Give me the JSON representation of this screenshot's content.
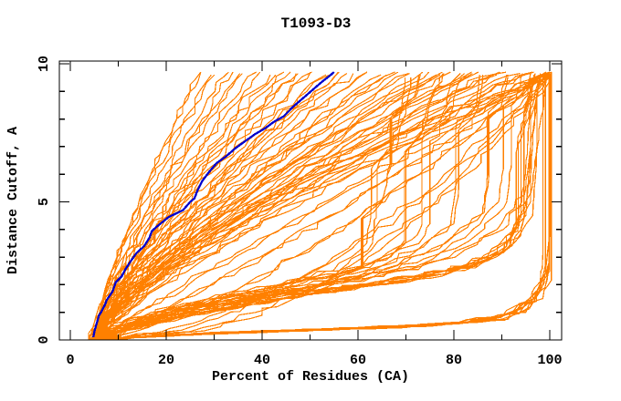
{
  "page": {
    "background": "#ffffff"
  },
  "chart_data": {
    "type": "line",
    "title": "T1093-D3",
    "xlabel": "Percent of Residues (CA)",
    "ylabel": "Distance Cutoff, A",
    "xlim": [
      0,
      100
    ],
    "ylim": [
      0,
      10
    ],
    "x_major_ticks": [
      0,
      20,
      40,
      60,
      80,
      100
    ],
    "x_minor_ticks": [
      10,
      30,
      50,
      70,
      90
    ],
    "y_major_ticks": [
      0,
      5,
      10
    ],
    "y_minor_ticks": [
      1,
      2,
      3,
      4,
      6,
      7,
      8,
      9
    ],
    "grid": false,
    "legend": null,
    "colors": {
      "model_lines": "#ff8000",
      "highlight_line": "#0000cd",
      "frame": "#000000",
      "text": "#000000"
    },
    "highlight_series": {
      "name": "highlighted-model",
      "points": [
        4.8,
        0.1,
        5.5,
        0.6,
        6.4,
        1.0,
        7.6,
        1.45,
        8.8,
        1.75,
        10.7,
        2.3,
        12.6,
        2.85,
        15.4,
        3.4,
        16.5,
        3.7,
        18,
        4.1,
        20.5,
        4.45,
        23.5,
        4.7,
        25,
        5.0,
        26.5,
        5.4,
        27.5,
        5.75,
        29,
        6.1,
        30.5,
        6.4,
        32.5,
        6.65,
        34.5,
        6.95,
        36.5,
        7.2,
        38.5,
        7.45,
        40.5,
        7.65,
        42.5,
        7.9,
        44.5,
        8.1,
        46.5,
        8.45,
        48.5,
        8.75,
        50.5,
        9.05,
        52.5,
        9.35,
        54,
        9.55,
        55,
        9.7
      ]
    },
    "series": [
      [
        4.6,
        0,
        5.5,
        0.5,
        6.2,
        1,
        7.8,
        2,
        9.8,
        3,
        12,
        4,
        14.3,
        5,
        16.8,
        6,
        19.4,
        7,
        22.2,
        8,
        25,
        9,
        27.2,
        9.7
      ],
      [
        5.2,
        0,
        5.5,
        0.5,
        6.3,
        1,
        8.2,
        2,
        10.4,
        3,
        12.9,
        4,
        15.5,
        5,
        18.4,
        6,
        21.3,
        7,
        24.4,
        8,
        27.6,
        9,
        30.1,
        9.6
      ],
      [
        4.8,
        0,
        5.6,
        0.5,
        6.5,
        1,
        8.6,
        2,
        11.0,
        3,
        13.8,
        4,
        16.7,
        5,
        19.9,
        6,
        23.2,
        7,
        26.6,
        8,
        30.2,
        9,
        33.0,
        9.7
      ],
      [
        5.5,
        0,
        5.7,
        0.5,
        6.6,
        1,
        8.9,
        2,
        11.7,
        3,
        14.7,
        4,
        18.0,
        5,
        21.4,
        6,
        25.1,
        7,
        28.9,
        8,
        32.8,
        9,
        35.9,
        9.65
      ],
      [
        5.0,
        0,
        5.7,
        0.5,
        6.8,
        1,
        9.3,
        2,
        12.3,
        3,
        15.6,
        4,
        19.2,
        5,
        23.0,
        6,
        27.0,
        7,
        31.1,
        8,
        35.5,
        9,
        38.8,
        9.7
      ],
      [
        5.8,
        0,
        5.9,
        0.5,
        6.9,
        1,
        9.7,
        2,
        12.9,
        3,
        16.5,
        4,
        20.4,
        5,
        24.5,
        6,
        28.8,
        7,
        33.4,
        8,
        38.1,
        9,
        41.7,
        9.6
      ],
      [
        4.7,
        0,
        5.8,
        0.5,
        7.1,
        1,
        10.0,
        2,
        13.5,
        3,
        17.4,
        4,
        21.6,
        5,
        26.1,
        6,
        30.7,
        7,
        35.6,
        8,
        40.7,
        9,
        44.6,
        9.7
      ],
      [
        5.3,
        0,
        5.9,
        0.5,
        7.2,
        1,
        10.4,
        2,
        14.2,
        3,
        18.3,
        4,
        22.8,
        5,
        27.6,
        6,
        32.6,
        7,
        37.8,
        8,
        43.3,
        9,
        47.5,
        9.65
      ],
      [
        6.0,
        0,
        6.0,
        0.5,
        7.4,
        1,
        10.8,
        2,
        14.8,
        3,
        19.2,
        4,
        24.0,
        5,
        29.1,
        6,
        34.5,
        7,
        40.1,
        8,
        45.9,
        9,
        50.4,
        9.7
      ],
      [
        4.9,
        0,
        6.0,
        0.5,
        7.5,
        1,
        11.2,
        2,
        15.4,
        3,
        20.2,
        4,
        25.3,
        5,
        30.7,
        6,
        36.4,
        7,
        42.3,
        8,
        48.5,
        9,
        53.3,
        9.6
      ],
      [
        5.6,
        0,
        6.1,
        0.5,
        7.7,
        1,
        11.5,
        2,
        16.1,
        3,
        21.1,
        4,
        26.5,
        5,
        32.2,
        6,
        38.3,
        7,
        44.6,
        8,
        51.1,
        9,
        56.1,
        9.7
      ],
      [
        5.1,
        0,
        6.1,
        0.5,
        7.8,
        1,
        11.9,
        2,
        16.7,
        3,
        22.0,
        4,
        27.7,
        5,
        33.8,
        6,
        40.1,
        7,
        46.8,
        8,
        53.7,
        9,
        59.0,
        9.65
      ],
      [
        4.6,
        0,
        6.2,
        0.5,
        8.0,
        1,
        12.3,
        2,
        17.3,
        3,
        22.9,
        4,
        28.9,
        5,
        35.3,
        6,
        42.0,
        7,
        49.0,
        8,
        56.3,
        9,
        61.9,
        9.7
      ],
      [
        5.9,
        0,
        6.3,
        0.5,
        8.1,
        1,
        12.6,
        2,
        17.9,
        3,
        23.8,
        4,
        30.1,
        5,
        36.8,
        6,
        43.9,
        7,
        51.3,
        8,
        58.9,
        9,
        64.8,
        9.6
      ],
      [
        5.2,
        0,
        6.3,
        0.5,
        8.3,
        1,
        13.0,
        2,
        18.6,
        3,
        24.7,
        4,
        31.3,
        5,
        38.4,
        6,
        45.8,
        7,
        53.5,
        8,
        61.6,
        9,
        67.7,
        9.7
      ],
      [
        4.8,
        0,
        6.4,
        0.5,
        8.4,
        1,
        13.4,
        2,
        19.2,
        3,
        25.6,
        4,
        32.5,
        5,
        39.9,
        6,
        47.7,
        7,
        55.8,
        8,
        64.2,
        9,
        70.6,
        9.65
      ],
      [
        5.4,
        0,
        6.4,
        0.5,
        8.6,
        1,
        13.7,
        2,
        19.8,
        3,
        26.5,
        4,
        33.8,
        5,
        41.5,
        6,
        49.6,
        7,
        58.0,
        8,
        66.8,
        9,
        73.5,
        9.7
      ],
      [
        6.1,
        0,
        6.5,
        0.5,
        8.7,
        1,
        14.1,
        2,
        20.4,
        3,
        27.4,
        4,
        35.0,
        5,
        43.0,
        6,
        51.4,
        7,
        60.2,
        8,
        69.4,
        9,
        76.4,
        9.6
      ],
      [
        5.0,
        0,
        6.6,
        0.5,
        8.9,
        1,
        14.5,
        2,
        21.1,
        3,
        28.3,
        4,
        36.2,
        5,
        44.5,
        6,
        53.3,
        7,
        62.5,
        8,
        72.0,
        9,
        79.3,
        9.7
      ],
      [
        4.7,
        0,
        6.6,
        0.5,
        9.0,
        1,
        14.8,
        2,
        21.7,
        3,
        29.2,
        4,
        37.4,
        5,
        46.1,
        6,
        55.2,
        7,
        64.7,
        8,
        74.6,
        9,
        82.2,
        9.65
      ],
      [
        5.7,
        0,
        6.7,
        0.5,
        9.2,
        1,
        15.2,
        2,
        22.3,
        3,
        30.1,
        4,
        38.6,
        5,
        47.6,
        6,
        57.1,
        7,
        67.0,
        8,
        77.2,
        9,
        85.1,
        9.7
      ],
      [
        5.3,
        0,
        6.7,
        0.5,
        9.3,
        1,
        15.6,
        2,
        22.9,
        3,
        31.1,
        4,
        39.8,
        5,
        49.2,
        6,
        59.0,
        7,
        69.2,
        8,
        79.8,
        9,
        88.0,
        9.6
      ],
      [
        4.9,
        0,
        6.8,
        0.5,
        9.5,
        1,
        15.9,
        2,
        23.6,
        3,
        32.0,
        4,
        41.0,
        5,
        50.7,
        6,
        60.8,
        7,
        71.4,
        8,
        82.4,
        9,
        90.9,
        9.7
      ],
      [
        6.2,
        0,
        6.9,
        0.5,
        9.6,
        1,
        16.3,
        2,
        24.2,
        3,
        32.9,
        4,
        42.3,
        5,
        52.2,
        6,
        62.7,
        7,
        73.7,
        8,
        85.0,
        9,
        93.8,
        9.65
      ],
      [
        5.5,
        0,
        6.9,
        0.5,
        9.8,
        1,
        16.7,
        2,
        24.8,
        3,
        33.8,
        4,
        43.5,
        5,
        53.8,
        6,
        64.6,
        7,
        75.9,
        8,
        87.7,
        9,
        96.7,
        9.7
      ],
      [
        5.1,
        0,
        7.0,
        0.5,
        9.9,
        1,
        17.1,
        2,
        25.5,
        3,
        34.7,
        4,
        44.7,
        5,
        55.3,
        6,
        66.5,
        7,
        78.1,
        8,
        90.3,
        9,
        99.6,
        9.65
      ],
      [
        5.0,
        0,
        24.9,
        0.3,
        34.1,
        0.7,
        42.1,
        1.2,
        51.6,
        2,
        61.1,
        3,
        72.3,
        4.5,
        81.6,
        6,
        89.6,
        7.5,
        95.4,
        8.7,
        100,
        9.7
      ],
      [
        5.5,
        0,
        19.1,
        0.3,
        27.3,
        0.7,
        35.1,
        1.2,
        44.9,
        2,
        54.8,
        3,
        67.3,
        4.5,
        78.0,
        6,
        87.5,
        7.5,
        94.5,
        8.7,
        100,
        9.65
      ],
      [
        4.8,
        0,
        13.4,
        0.3,
        20.1,
        0.7,
        27.0,
        1.2,
        36.4,
        2,
        46.8,
        3,
        60.5,
        4.5,
        72.9,
        6,
        84.3,
        7.5,
        93.1,
        8.7,
        100,
        9.7
      ],
      [
        5.2,
        0,
        9.9,
        0.3,
        15.2,
        0.7,
        21.2,
        1.2,
        29.8,
        2,
        40.1,
        3,
        54.5,
        4.5,
        68.2,
        6,
        81.3,
        7.5,
        91.6,
        8.7,
        100,
        9.6
      ],
      [
        5.0,
        0,
        7.9,
        0.3,
        11.8,
        0.7,
        16.8,
        1.2,
        24.6,
        2,
        34.4,
        3,
        49.1,
        4.5,
        63.8,
        6,
        78.4,
        7.5,
        90.2,
        8.7,
        100,
        9.7
      ],
      [
        5.6,
        0,
        6.5,
        0.3,
        9.1,
        0.7,
        12.7,
        1.2,
        19.3,
        2,
        28.2,
        3,
        42.8,
        4.5,
        58.4,
        6,
        74.7,
        7.5,
        88.4,
        8.7,
        100,
        9.65
      ],
      [
        4.9,
        0,
        5.5,
        0.3,
        6.8,
        0.7,
        9.2,
        1.2,
        13.9,
        2,
        21.3,
        3,
        35.0,
        4.5,
        51.3,
        6,
        69.6,
        7.5,
        85.7,
        8.7,
        100,
        9.7
      ],
      [
        5.0,
        0,
        12,
        0.6,
        22,
        1.1,
        35,
        1.6,
        48,
        2.1,
        60,
        2.6,
        68,
        3.2,
        70,
        3.6,
        70,
        6.8,
        73,
        7.4,
        75,
        8.6,
        76,
        9.0,
        78,
        9.65
      ],
      [
        5.0,
        0,
        14,
        0.7,
        28,
        1.3,
        44,
        1.9,
        58,
        2.4,
        66,
        2.9,
        74,
        3.8,
        75,
        4.2,
        75,
        7.2,
        79,
        8.0,
        81,
        9.3,
        83,
        9.65
      ],
      [
        5.0,
        0,
        10,
        0.5,
        18,
        1.0,
        30,
        1.5,
        45,
        2.0,
        56,
        2.5,
        63,
        3.5,
        64,
        5.0,
        64,
        6.2,
        68,
        6.9,
        70,
        8.2,
        71,
        9.5
      ],
      [
        5.0,
        0,
        16,
        0.8,
        32,
        1.4,
        50,
        2.0,
        62,
        2.5,
        72,
        3.2,
        80,
        4.2,
        81,
        5.5,
        81,
        7.6,
        85,
        8.4,
        86,
        9.6
      ],
      [
        5.0,
        0,
        18,
        0.9,
        36,
        1.5,
        55,
        2.1,
        68,
        2.7,
        78,
        3.5,
        86,
        4.6,
        87,
        6.0,
        87,
        8.0,
        90,
        8.8,
        91,
        9.6
      ],
      [
        5.0,
        0,
        20,
        1.0,
        40,
        1.6,
        60,
        2.2,
        74,
        2.8,
        84,
        3.7,
        91,
        5.0,
        92,
        6.5,
        92,
        8.5,
        95,
        9.0,
        96,
        9.65
      ],
      [
        5.0,
        0,
        22,
        1.1,
        44,
        1.7,
        64,
        2.3,
        79,
        3.0,
        89,
        4.0,
        95,
        5.5,
        96,
        7.0,
        96,
        9.0,
        99,
        9.65
      ],
      [
        5.0,
        0,
        13,
        0.4,
        26,
        0.9,
        40,
        1.3,
        52,
        1.8,
        61,
        2.6,
        61,
        4.4,
        65,
        5.0,
        67,
        6.4,
        67,
        8.0,
        72,
        8.8,
        73,
        9.6
      ],
      [
        5,
        0,
        20,
        0.15,
        45,
        0.3,
        70,
        0.45,
        88,
        0.7,
        95,
        1.0,
        99,
        1.9,
        100,
        2.7,
        100,
        9.65
      ],
      [
        6,
        0,
        25,
        0.2,
        50,
        0.35,
        75,
        0.5,
        90,
        0.75,
        96,
        1.2,
        99.5,
        2.2,
        100,
        3.1,
        100,
        9.6
      ],
      [
        5,
        0,
        30,
        0.25,
        55,
        0.4,
        80,
        0.6,
        92,
        0.95,
        97,
        1.5,
        100,
        2.5,
        100,
        9.7
      ],
      [
        6,
        0.05,
        35,
        0.3,
        60,
        0.45,
        83,
        0.65,
        93,
        1.0,
        98,
        1.8,
        100,
        2.9,
        100,
        9.55
      ],
      [
        5,
        0,
        28,
        0.22,
        52,
        0.38,
        76,
        0.55,
        90,
        0.85,
        96,
        1.4,
        99,
        2.4,
        100,
        4.0,
        100,
        9.65
      ],
      [
        6,
        0.1,
        20,
        0.8,
        40,
        1.5,
        60,
        1.9,
        75,
        2.3,
        86,
        2.8,
        93,
        3.6,
        96,
        5.0,
        96,
        8.0,
        98,
        9.6
      ],
      [
        5,
        0.1,
        18,
        0.7,
        36,
        1.3,
        56,
        1.8,
        72,
        2.2,
        84,
        2.7,
        91,
        3.4,
        94,
        4.6,
        94,
        7.5,
        97,
        9.55
      ],
      [
        6,
        0.1,
        22,
        0.9,
        42,
        1.6,
        62,
        2.0,
        78,
        2.5,
        88,
        3.0,
        94,
        4.0,
        96,
        6.0,
        97,
        8.5,
        98,
        9.65
      ],
      [
        5,
        0.05,
        16,
        0.6,
        34,
        1.2,
        52,
        1.7,
        68,
        2.1,
        81,
        2.6,
        90,
        3.2,
        93,
        4.2,
        93,
        6.8,
        96,
        9.5
      ],
      [
        6,
        0.1,
        24,
        1.0,
        45,
        1.7,
        64,
        2.1,
        80,
        2.6,
        89,
        3.2,
        95,
        4.5,
        96,
        7.0,
        98,
        9.6
      ]
    ],
    "render": {
      "seed": 11,
      "passes": 2,
      "step": 0.25,
      "jitter": 1.15,
      "sibling_shift": 1.7
    }
  }
}
